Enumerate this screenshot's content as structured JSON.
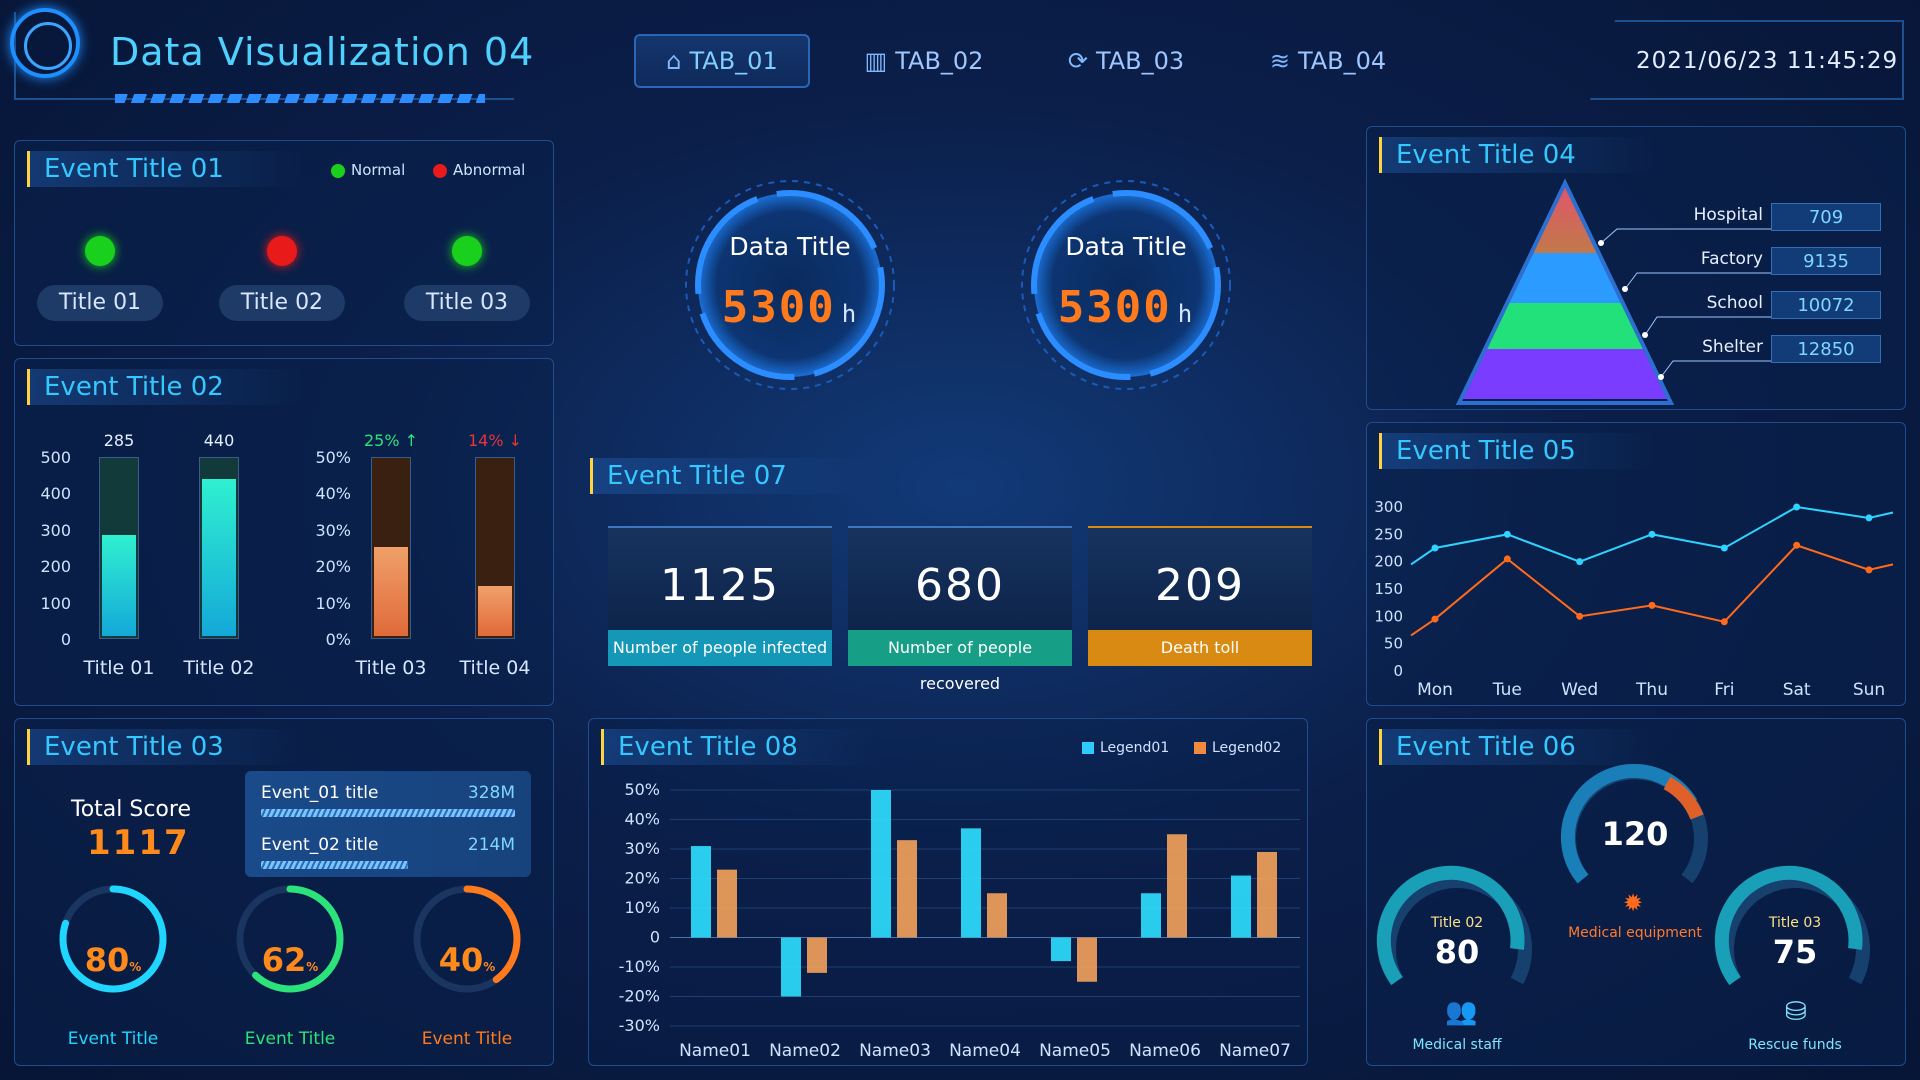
{
  "header": {
    "app_title": "Data Visualization 04",
    "tabs": [
      {
        "label": "TAB_01",
        "icon": "home-icon",
        "active": true
      },
      {
        "label": "TAB_02",
        "icon": "bar-chart-icon"
      },
      {
        "label": "TAB_03",
        "icon": "cycle-icon"
      },
      {
        "label": "TAB_04",
        "icon": "layers-icon"
      }
    ],
    "datetime": "2021/06/23  11:45:29"
  },
  "event01": {
    "title": "Event Title 01",
    "legend": {
      "normal": "Normal",
      "abnormal": "Abnormal",
      "normal_color": "#19d11c",
      "abnormal_color": "#e81a1a"
    },
    "items": [
      {
        "label": "Title 01",
        "status": "normal"
      },
      {
        "label": "Title 02",
        "status": "abnormal"
      },
      {
        "label": "Title 03",
        "status": "normal"
      }
    ]
  },
  "event02": {
    "title": "Event Title 02",
    "chart_data": [
      {
        "type": "bar",
        "categories": [
          "Title 01",
          "Title 02"
        ],
        "values": [
          285,
          440
        ],
        "data_labels": [
          "285",
          "440"
        ],
        "ylim": [
          0,
          500
        ],
        "yticks": [
          "500",
          "400",
          "300",
          "200",
          "100",
          "0"
        ]
      },
      {
        "type": "bar",
        "categories": [
          "Title 03",
          "Title 04"
        ],
        "values": [
          25,
          14
        ],
        "data_labels": [
          "25%",
          "14%"
        ],
        "trend": [
          "up",
          "down"
        ],
        "ylim": [
          0,
          50
        ],
        "yticks": [
          "50%",
          "40%",
          "30%",
          "20%",
          "10%",
          "0%"
        ]
      }
    ]
  },
  "event03": {
    "title": "Event Title 03",
    "total_label": "Total Score",
    "total_value": "1117",
    "rows": [
      {
        "label": "Event_01 title",
        "value": "328M",
        "fraction": 1.0
      },
      {
        "label": "Event_02 title",
        "value": "214M",
        "fraction": 0.58
      }
    ],
    "rings": [
      {
        "value": "80",
        "pct": 80,
        "unit": "%",
        "label": "Event Title",
        "color": "#20d6ff"
      },
      {
        "value": "62",
        "pct": 62,
        "unit": "%",
        "label": "Event Title",
        "color": "#2be37a"
      },
      {
        "value": "40",
        "pct": 40,
        "unit": "%",
        "label": "Event Title",
        "color": "#ff7a1c"
      }
    ]
  },
  "center": {
    "gauges": [
      {
        "title": "Data Title",
        "value": "5300",
        "unit": "h"
      },
      {
        "title": "Data Title",
        "value": "5300",
        "unit": "h"
      }
    ]
  },
  "event07": {
    "title": "Event Title 07",
    "stats": [
      {
        "value": "1125",
        "caption": "Number of people infected",
        "color": "#1597b8"
      },
      {
        "value": "680",
        "caption": "Number of people recovered",
        "color": "#169e86"
      },
      {
        "value": "209",
        "caption": "Death toll",
        "color": "#d98a12"
      }
    ]
  },
  "event08": {
    "title": "Event Title 08",
    "legend": [
      "Legend01",
      "Legend02"
    ],
    "chart_data": {
      "type": "bar",
      "categories": [
        "Name01",
        "Name02",
        "Name03",
        "Name04",
        "Name05",
        "Name06",
        "Name07"
      ],
      "series": [
        {
          "name": "Legend01",
          "values": [
            31,
            -20,
            50,
            37,
            -8,
            15,
            21
          ]
        },
        {
          "name": "Legend02",
          "values": [
            23,
            -12,
            33,
            15,
            -15,
            35,
            29
          ]
        }
      ],
      "ylim": [
        -30,
        50
      ],
      "yticks": [
        "50%",
        "40%",
        "30%",
        "20%",
        "10%",
        "0",
        "-10%",
        "-20%",
        "-30%"
      ]
    }
  },
  "event04": {
    "title": "Event Title 04",
    "items": [
      {
        "label": "Hospital",
        "value": "709"
      },
      {
        "label": "Factory",
        "value": "9135"
      },
      {
        "label": "School",
        "value": "10072"
      },
      {
        "label": "Shelter",
        "value": "12850"
      }
    ]
  },
  "event05": {
    "title": "Event Title 05",
    "chart_data": {
      "type": "line",
      "categories": [
        "Mon",
        "Tue",
        "Wed",
        "Thu",
        "Fri",
        "Sat",
        "Sun"
      ],
      "series": [
        {
          "values": [
            225,
            250,
            200,
            250,
            225,
            300,
            280
          ],
          "color": "#2ed3ff"
        },
        {
          "values": [
            95,
            205,
            100,
            120,
            90,
            230,
            185
          ],
          "color": "#ff6a1c"
        }
      ],
      "ylim": [
        0,
        300
      ],
      "yticks": [
        "300",
        "250",
        "200",
        "150",
        "100",
        "50",
        "0"
      ]
    }
  },
  "event06": {
    "title": "Event Title 06",
    "gauges": [
      {
        "title": "Title 02",
        "value": "80",
        "label": "Medical staff",
        "icon": "people-icon"
      },
      {
        "title": "",
        "value": "120",
        "label": "Medical equipment",
        "icon": "equipment-icon"
      },
      {
        "title": "Title 03",
        "value": "75",
        "label": "Rescue funds",
        "icon": "coins-icon"
      }
    ]
  }
}
